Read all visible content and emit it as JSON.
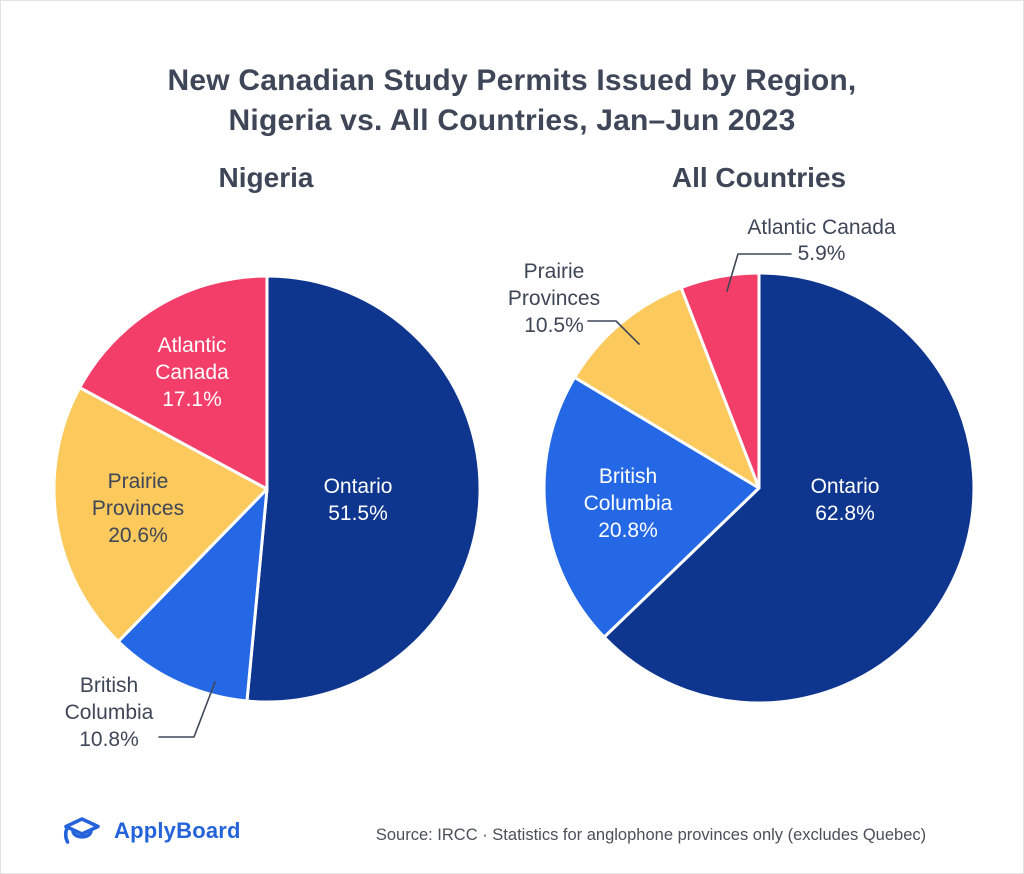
{
  "title": {
    "line1": "New Canadian Study Permits Issued by Region,",
    "line2": "Nigeria vs. All Countries, Jan–Jun 2023"
  },
  "chart_data": [
    {
      "type": "pie",
      "title": "Nigeria",
      "start_angle": "top",
      "direction": "clockwise",
      "slices": [
        {
          "label": "Ontario",
          "value": 51.5,
          "display": "51.5%",
          "color": "#0E368E",
          "label_lines": [
            "Ontario",
            "51.5%"
          ],
          "label_position": "inside"
        },
        {
          "label": "British Columbia",
          "value": 10.8,
          "display": "10.8%",
          "color": "#2468E5",
          "label_lines": [
            "British",
            "Columbia",
            "10.8%"
          ],
          "label_position": "outside-callout"
        },
        {
          "label": "Prairie Provinces",
          "value": 20.6,
          "display": "20.6%",
          "color": "#FBC95C",
          "label_lines": [
            "Prairie",
            "Provinces",
            "20.6%"
          ],
          "label_position": "inside"
        },
        {
          "label": "Atlantic Canada",
          "value": 17.1,
          "display": "17.1%",
          "color": "#F33E6A",
          "label_lines": [
            "Atlantic",
            "Canada",
            "17.1%"
          ],
          "label_position": "inside"
        }
      ]
    },
    {
      "type": "pie",
      "title": "All Countries",
      "start_angle": "top",
      "direction": "clockwise",
      "slices": [
        {
          "label": "Ontario",
          "value": 62.8,
          "display": "62.8%",
          "color": "#0E368E",
          "label_lines": [
            "Ontario",
            "62.8%"
          ],
          "label_position": "inside"
        },
        {
          "label": "British Columbia",
          "value": 20.8,
          "display": "20.8%",
          "color": "#2468E5",
          "label_lines": [
            "British",
            "Columbia",
            "20.8%"
          ],
          "label_position": "inside"
        },
        {
          "label": "Prairie Provinces",
          "value": 10.5,
          "display": "10.5%",
          "color": "#FBC95C",
          "label_lines": [
            "Prairie",
            "Provinces",
            "10.5%"
          ],
          "label_position": "outside-callout"
        },
        {
          "label": "Atlantic Canada",
          "value": 5.9,
          "display": "5.9%",
          "color": "#F33E6A",
          "label_lines": [
            "Atlantic Canada",
            "5.9%"
          ],
          "label_position": "outside-callout"
        }
      ]
    }
  ],
  "footer": {
    "logo_text": "ApplyBoard",
    "source": "Source: IRCC · Statistics for anglophone provinces only (excludes Quebec)"
  },
  "colors": {
    "ontario_navy": "#0E368E",
    "british_columbia_blue": "#2468E5",
    "prairie_yellow": "#FBC95C",
    "atlantic_pink": "#F33E6A",
    "heading_text": "#3E4657",
    "source_text": "#4A4F58",
    "brand_blue": "#2563DB",
    "background": "#FFFFFF"
  }
}
